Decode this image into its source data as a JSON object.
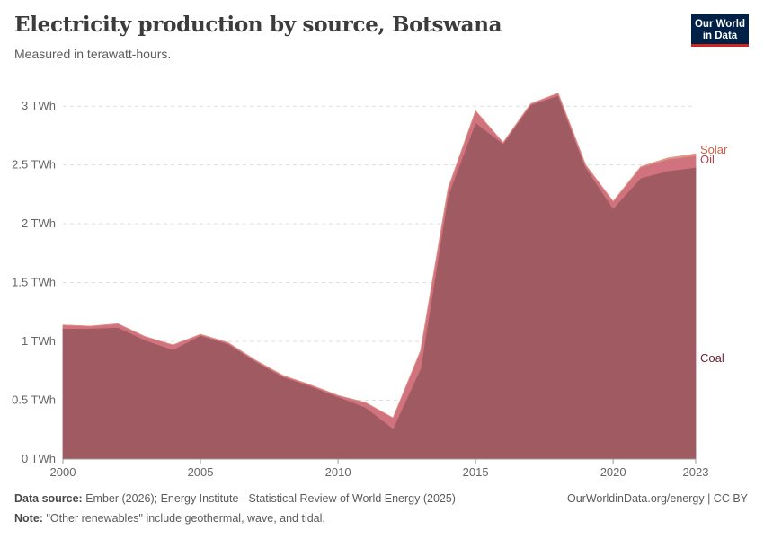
{
  "header": {
    "title": "Electricity production by source, Botswana",
    "subtitle": "Measured in terawatt-hours."
  },
  "logo": {
    "line1": "Our World",
    "line2": "in Data"
  },
  "footer": {
    "source_label": "Data source:",
    "source_text": "Ember (2026); Energy Institute - Statistical Review of World Energy (2025)",
    "note_label": "Note:",
    "note_text": "\"Other renewables\" include geothermal, wave, and tidal.",
    "credit": "OurWorldinData.org/energy | CC BY"
  },
  "chart_data": {
    "type": "area",
    "stacked": true,
    "x": [
      2000,
      2001,
      2002,
      2003,
      2004,
      2005,
      2006,
      2007,
      2008,
      2009,
      2010,
      2011,
      2012,
      2013,
      2014,
      2015,
      2016,
      2017,
      2018,
      2019,
      2020,
      2021,
      2022,
      2023
    ],
    "xticks": [
      "2000",
      "2005",
      "2010",
      "2015",
      "2020",
      "2023"
    ],
    "xtick_values": [
      2000,
      2005,
      2010,
      2015,
      2020,
      2023
    ],
    "ylim": [
      0,
      3.2
    ],
    "yticks": [
      {
        "value": 0,
        "label": "0 TWh"
      },
      {
        "value": 0.5,
        "label": "0.5 TWh"
      },
      {
        "value": 1,
        "label": "1 TWh"
      },
      {
        "value": 1.5,
        "label": "1.5 TWh"
      },
      {
        "value": 2,
        "label": "2 TWh"
      },
      {
        "value": 2.5,
        "label": "2.5 TWh"
      },
      {
        "value": 3,
        "label": "3 TWh"
      }
    ],
    "grid": true,
    "series": [
      {
        "name": "Coal",
        "color": "#a05a62",
        "label_color": "#6d1f2e",
        "values": [
          1.11,
          1.11,
          1.12,
          1.01,
          0.93,
          1.05,
          0.98,
          0.83,
          0.7,
          0.62,
          0.53,
          0.44,
          0.26,
          0.77,
          2.24,
          2.86,
          2.68,
          3.01,
          3.09,
          2.48,
          2.13,
          2.39,
          2.45,
          2.48
        ]
      },
      {
        "name": "Oil",
        "color": "#d0737f",
        "label_color": "#b2424f",
        "values": [
          0.03,
          0.02,
          0.03,
          0.03,
          0.04,
          0.01,
          0.01,
          0.01,
          0.01,
          0.01,
          0.01,
          0.04,
          0.09,
          0.15,
          0.06,
          0.1,
          0.01,
          0.01,
          0.02,
          0.02,
          0.06,
          0.09,
          0.1,
          0.1
        ]
      },
      {
        "name": "Solar",
        "color": "#e39484",
        "label_color": "#d15f48",
        "values": [
          0,
          0,
          0,
          0,
          0,
          0,
          0,
          0,
          0,
          0,
          0,
          0,
          0,
          0,
          0,
          0,
          0,
          0,
          0,
          0,
          0,
          0.005,
          0.01,
          0.015
        ]
      }
    ]
  }
}
